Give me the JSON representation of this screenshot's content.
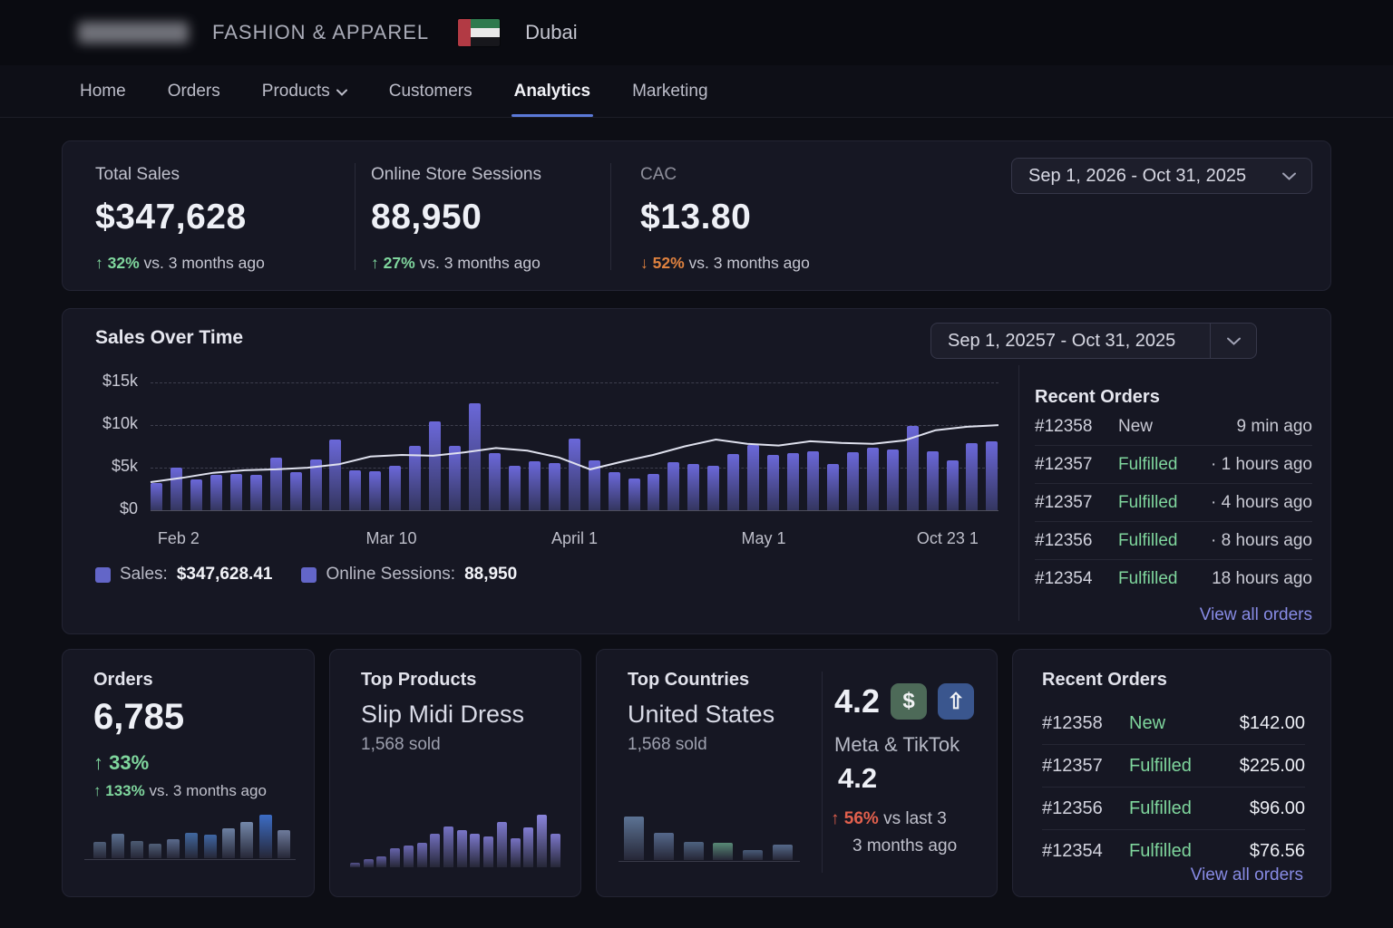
{
  "header": {
    "brand": "FASHION & APPAREL",
    "location": "Dubai"
  },
  "nav": {
    "items": [
      {
        "label": "Home"
      },
      {
        "label": "Orders"
      },
      {
        "label": "Products"
      },
      {
        "label": "Customers"
      },
      {
        "label": "Analytics"
      },
      {
        "label": "Marketing"
      }
    ],
    "active": "Analytics"
  },
  "kpi": {
    "date_range": "Sep 1, 2026 - Oct 31, 2025",
    "items": [
      {
        "label": "Total Sales",
        "value": "$347,628",
        "arrow": "↑",
        "delta": "32%",
        "suffix": "vs. 3 months ago"
      },
      {
        "label": "Online Store Sessions",
        "value": "88,950",
        "arrow": "↑",
        "delta": "27%",
        "suffix": "vs. 3 months ago"
      },
      {
        "label": "CAC",
        "value": "$13.80",
        "arrow": "↓",
        "delta": "52%",
        "suffix": "vs. 3 months ago"
      }
    ]
  },
  "sales_card": {
    "title": "Sales Over Time",
    "date_range": "Sep 1, 20257 - Oct 31, 2025",
    "legend": [
      {
        "label": "Sales:",
        "value": "$347,628.41",
        "swatch": "#6366c8"
      },
      {
        "label": "Online Sessions:",
        "value": "88,950",
        "swatch": "#6366c8"
      }
    ]
  },
  "recent_orders_top": {
    "title": "Recent Orders",
    "rows": [
      {
        "id": "#12358",
        "status": "New",
        "status_color": "#c8c9d4",
        "meta": "9 min ago"
      },
      {
        "id": "#12357",
        "status": "Fulfilled",
        "status_color": "#7fd69d",
        "meta": "· 1 hours ago"
      },
      {
        "id": "#12357",
        "status": "Fulfilled",
        "status_color": "#7fd69d",
        "meta": "· 4 hours ago"
      },
      {
        "id": "#12356",
        "status": "Fulfilled",
        "status_color": "#7fd69d",
        "meta": "· 8 hours ago"
      },
      {
        "id": "#12354",
        "status": "Fulfilled",
        "status_color": "#7fd69d",
        "meta": "18 hours ago"
      }
    ],
    "link": "View all orders"
  },
  "orders_card": {
    "title": "Orders",
    "value": "6,785",
    "arrow": "↑",
    "delta": "33%",
    "arrow2": "↑",
    "delta2": "133%",
    "suffix2": "vs. 3 months ago"
  },
  "top_products_card": {
    "title": "Top Products",
    "name": "Slip Midi Dress",
    "sub": "1,568 sold"
  },
  "top_countries_card": {
    "title": "Top Countries",
    "name": "United States",
    "sub": "1,568 sold"
  },
  "ad_card": {
    "rating": "4.2",
    "dollar_icon": "$",
    "arrow_icon": "⇧",
    "platforms": "Meta & TikTok",
    "rating2": "4.2",
    "arrow": "↑",
    "delta": "56%",
    "suffix": "vs last 3",
    "line2": "3 months ago"
  },
  "recent_orders_bottom": {
    "title": "Recent Orders",
    "rows": [
      {
        "id": "#12358",
        "status": "New",
        "status_color": "#7fd69d",
        "amount": "$142.00"
      },
      {
        "id": "#12357",
        "status": "Fulfilled",
        "status_color": "#7fd69d",
        "amount": "$225.00"
      },
      {
        "id": "#12356",
        "status": "Fulfilled",
        "status_color": "#7fd69d",
        "amount": "$96.00"
      },
      {
        "id": "#12354",
        "status": "Fulfilled",
        "status_color": "#7fd69d",
        "amount": "$76.56"
      }
    ],
    "link": "View all orders"
  },
  "chart_data": [
    {
      "name": "sales_over_time",
      "type": "bar",
      "title": "Sales Over Time",
      "yticks": [
        "$15k",
        "$10k",
        "$5k",
        "$0"
      ],
      "ylim_k": [
        0,
        16.5
      ],
      "x_ticks": [
        "Feb 2",
        "Mar 10",
        "April 1",
        "May 1",
        "Oct 23 1"
      ],
      "grid": "dashed-horizontal",
      "bar_color_top": "#6b68d9",
      "bar_color_bottom": "#343660",
      "line_color": "#dfe1ee",
      "series": [
        {
          "name": "Sales",
          "type": "bar",
          "unit": "$k",
          "values": [
            3.2,
            5.0,
            3.6,
            4.2,
            4.3,
            4.2,
            6.2,
            4.5,
            6.0,
            8.3,
            4.7,
            4.6,
            5.2,
            7.5,
            10.4,
            7.5,
            12.6,
            6.7,
            5.2,
            5.7,
            5.5,
            8.4,
            5.9,
            4.5,
            3.7,
            4.3,
            5.6,
            5.4,
            5.2,
            6.6,
            7.7,
            6.5,
            6.7,
            6.9,
            5.4,
            6.8,
            7.3,
            7.1,
            9.9,
            6.9,
            5.9,
            7.9,
            8.1
          ]
        },
        {
          "name": "Online Sessions",
          "type": "line",
          "unit": "$k",
          "values": [
            3.4,
            3.9,
            4.5,
            4.8,
            4.9,
            5.1,
            5.5,
            6.4,
            6.6,
            6.5,
            6.9,
            7.4,
            7.1,
            6.3,
            4.9,
            5.8,
            6.6,
            7.6,
            8.4,
            7.9,
            7.7,
            8.2,
            8.0,
            7.9,
            8.3,
            9.5,
            9.9,
            10.1
          ]
        }
      ]
    },
    {
      "name": "orders_trend",
      "type": "bar",
      "values": [
        34,
        52,
        36,
        30,
        40,
        54,
        50,
        63,
        77,
        92,
        60
      ],
      "colors": [
        "#4e5d77",
        "#5a6f8f",
        "#4c5b73",
        "#516079",
        "#5a6a8c",
        "#41689f",
        "#3f66a4",
        "#6c80a2",
        "#7488aa",
        "#3c6cc4",
        "#6e7b9c"
      ]
    },
    {
      "name": "top_products_trend",
      "type": "bar",
      "values": [
        6,
        11,
        16,
        27,
        31,
        34,
        48,
        58,
        52,
        47,
        43,
        64,
        41,
        56,
        74,
        47
      ],
      "colors": [
        "#565490",
        "#5b5899",
        "#605da1",
        "#6663ab",
        "#6a67b2",
        "#6d6ab7",
        "#716ebd",
        "#7572c3",
        "#7975c8",
        "#7c78cc",
        "#7571c1",
        "#7d79cd",
        "#7671c2",
        "#817dd2",
        "#8a85dc",
        "#7c77cb"
      ]
    },
    {
      "name": "top_countries_trend",
      "type": "bar",
      "values": [
        78,
        48,
        33,
        30,
        18,
        27
      ],
      "colors": [
        "#5c7394",
        "#55688b",
        "#4e6280",
        "#588a76",
        "#495c79",
        "#55698a"
      ]
    }
  ],
  "colors": {
    "accent": "#5b79d8",
    "green": "#7fd69d",
    "orange": "#e0823f",
    "red": "#e2604d",
    "link": "#878be4"
  }
}
